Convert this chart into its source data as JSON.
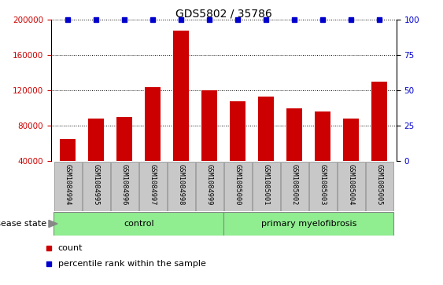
{
  "title": "GDS5802 / 35786",
  "categories": [
    "GSM1084994",
    "GSM1084995",
    "GSM1084996",
    "GSM1084997",
    "GSM1084998",
    "GSM1084999",
    "GSM1085000",
    "GSM1085001",
    "GSM1085002",
    "GSM1085003",
    "GSM1085004",
    "GSM1085005"
  ],
  "bar_values": [
    65000,
    88000,
    90000,
    124000,
    188000,
    120000,
    108000,
    113000,
    100000,
    96000,
    88000,
    130000
  ],
  "percentile_values": [
    100,
    100,
    100,
    100,
    100,
    100,
    100,
    100,
    100,
    100,
    100,
    100
  ],
  "bar_color": "#cc0000",
  "percentile_color": "#0000cc",
  "group1_label": "control",
  "group2_label": "primary myelofibrosis",
  "group1_count": 6,
  "group2_count": 6,
  "group1_color": "#90ee90",
  "group2_color": "#90ee90",
  "disease_state_label": "disease state",
  "ylim_left": [
    40000,
    200000
  ],
  "ylim_right": [
    0,
    100
  ],
  "yticks_left": [
    40000,
    80000,
    120000,
    160000,
    200000
  ],
  "yticks_right": [
    0,
    25,
    50,
    75,
    100
  ],
  "ylabel_color_left": "#cc0000",
  "ylabel_color_right": "#0000cc",
  "grid_color": "#000000",
  "background_color": "#ffffff",
  "tick_area_color": "#c8c8c8",
  "legend_count_label": "count",
  "legend_percentile_label": "percentile rank within the sample",
  "title_fontsize": 10,
  "axis_fontsize": 7.5,
  "label_fontsize": 8.5,
  "bar_width": 0.55
}
